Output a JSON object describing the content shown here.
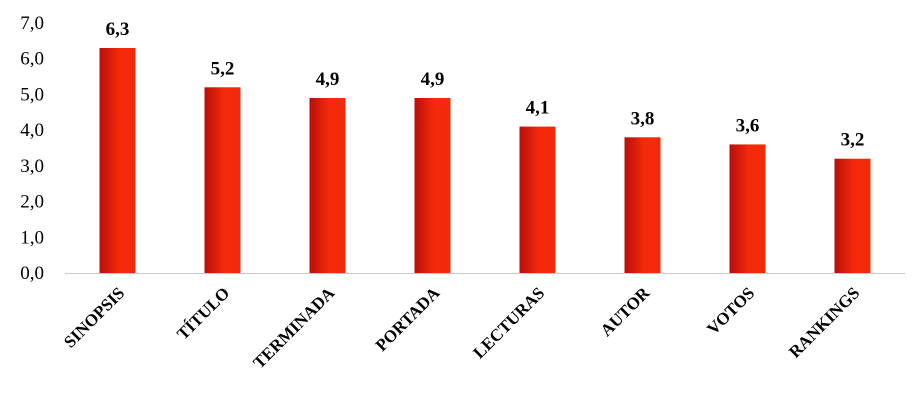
{
  "chart_data": {
    "type": "bar",
    "categories": [
      "SINOPSIS",
      "TÍTULO",
      "TERMINADA",
      "PORTADA",
      "LECTURAS",
      "AUTOR",
      "VOTOS",
      "RANKINGS"
    ],
    "values": [
      6.3,
      5.2,
      4.9,
      4.9,
      4.1,
      3.8,
      3.6,
      3.2
    ],
    "value_labels": [
      "6,3",
      "5,2",
      "4,9",
      "4,9",
      "4,1",
      "3,8",
      "3,6",
      "3,2"
    ],
    "ylim": [
      0,
      7
    ],
    "yticks": [
      0,
      1,
      2,
      3,
      4,
      5,
      6,
      7
    ],
    "ytick_labels": [
      "0,0",
      "1,0",
      "2,0",
      "3,0",
      "4,0",
      "5,0",
      "6,0",
      "7,0"
    ],
    "title": "",
    "xlabel": "",
    "ylabel": "",
    "grid": false,
    "legend": "none",
    "bar_color_light": "#f52a0a",
    "bar_color_dark": "#b80f0a"
  }
}
